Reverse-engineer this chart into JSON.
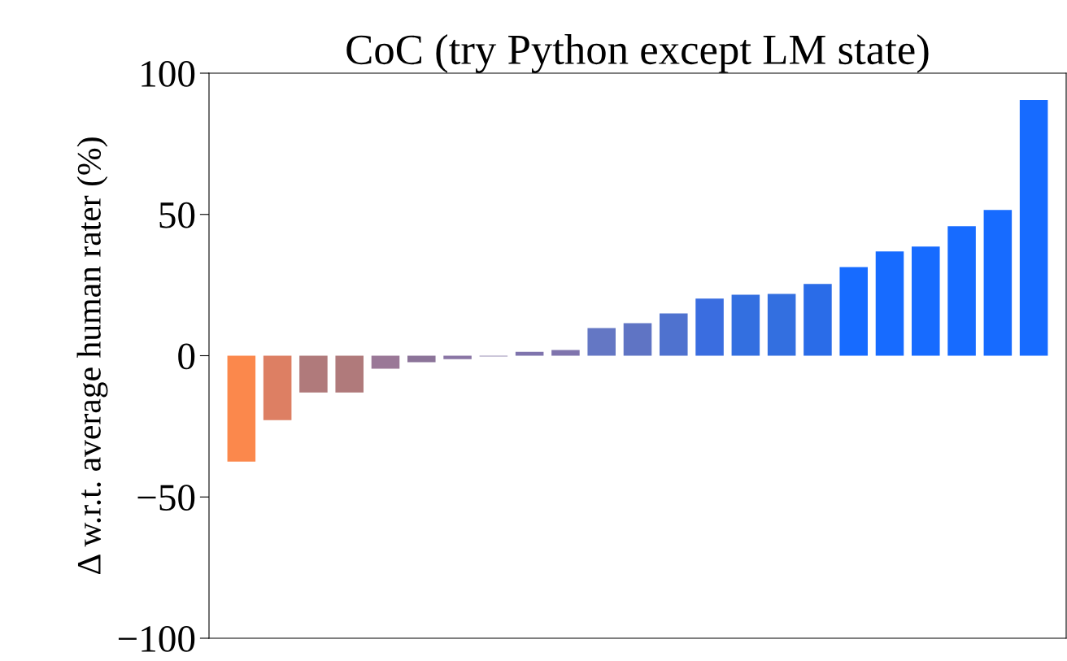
{
  "chart_data": {
    "type": "bar",
    "title": "CoC (try Python except LM state)",
    "ylabel": "Δ w.r.t. average human rater (%)",
    "categories": [
      null,
      null,
      null,
      null,
      null,
      null,
      null,
      null,
      null,
      null,
      null,
      null,
      null,
      null,
      null,
      null,
      null,
      null,
      null,
      null,
      null,
      null,
      null
    ],
    "values": [
      -37.5,
      -22.8,
      -13,
      -13,
      -4.6,
      -2.3,
      -1.2,
      -0.3,
      1.4,
      2,
      9.8,
      11.5,
      15,
      20.2,
      21.6,
      21.9,
      25.4,
      31.4,
      36.9,
      38.6,
      45.8,
      51.6,
      90.5
    ],
    "colors": [
      "#fb884c",
      "#dd7f63",
      "#b07a7b",
      "#b07a7b",
      "#9a7897",
      "#8c7499",
      "#8a76a5",
      "#9a90b6",
      "#7f74ad",
      "#7f74ad",
      "#6477c4",
      "#5f74c4",
      "#4f72cf",
      "#3a6de0",
      "#336fe0",
      "#336fe0",
      "#2a6ce8",
      "#176bff",
      "#176bff",
      "#176bff",
      "#176bff",
      "#176bff",
      "#176bff"
    ],
    "ylim": [
      -100,
      100
    ],
    "yticks": [
      {
        "value": -100,
        "label": "−100"
      },
      {
        "value": -50,
        "label": "−50"
      },
      0,
      50,
      100
    ],
    "tick_labels": "y",
    "grid": false
  }
}
